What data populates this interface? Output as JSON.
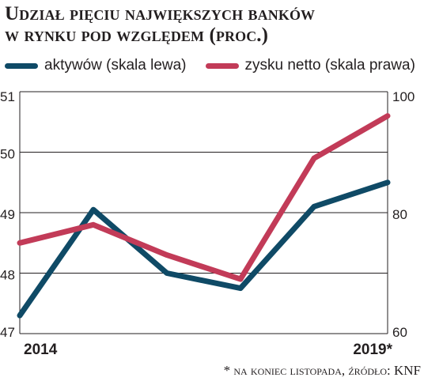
{
  "title_line1": "Udział pięciu największych banków",
  "title_line2": "w rynku pod względem (proc.)",
  "legend": [
    {
      "label": "aktywów (skala lewa)",
      "color": "#0f4a66"
    },
    {
      "label": "zysku netto (skala prawa)",
      "color": "#c23b58"
    }
  ],
  "footnote": "* na koniec listopada, źródło: KNF",
  "chart_data": {
    "type": "line",
    "x": [
      0,
      1,
      2,
      3,
      4,
      5
    ],
    "xticklabels": [
      "2014",
      "",
      "",
      "",
      "",
      "2019*"
    ],
    "left_axis": {
      "ylim": [
        47,
        51
      ],
      "ticks": [
        47,
        48,
        49,
        50,
        51
      ]
    },
    "right_axis": {
      "ylim": [
        60,
        100
      ],
      "ticks": [
        60,
        80,
        100
      ]
    },
    "grid": true,
    "legend_position": "top",
    "series": [
      {
        "name": "aktywów (skala lewa)",
        "axis": "left",
        "color": "#0f4a66",
        "values": [
          47.3,
          49.05,
          48.0,
          47.75,
          49.1,
          49.5
        ]
      },
      {
        "name": "zysku netto (skala prawa)",
        "axis": "right",
        "color": "#c23b58",
        "values": [
          75.0,
          78.0,
          73.0,
          69.0,
          89.0,
          96.0
        ]
      }
    ]
  }
}
